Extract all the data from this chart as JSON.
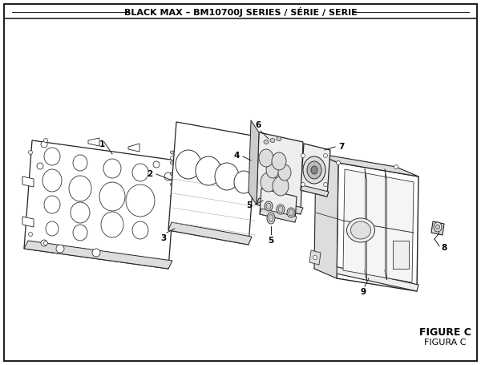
{
  "title": "BLACK MAX – BM10700J SERIES / SÉRIE / SERIE",
  "figure_label": "FIGURE C",
  "figure_label2": "FIGURA C",
  "bg_color": "#ffffff",
  "border_color": "#222222"
}
